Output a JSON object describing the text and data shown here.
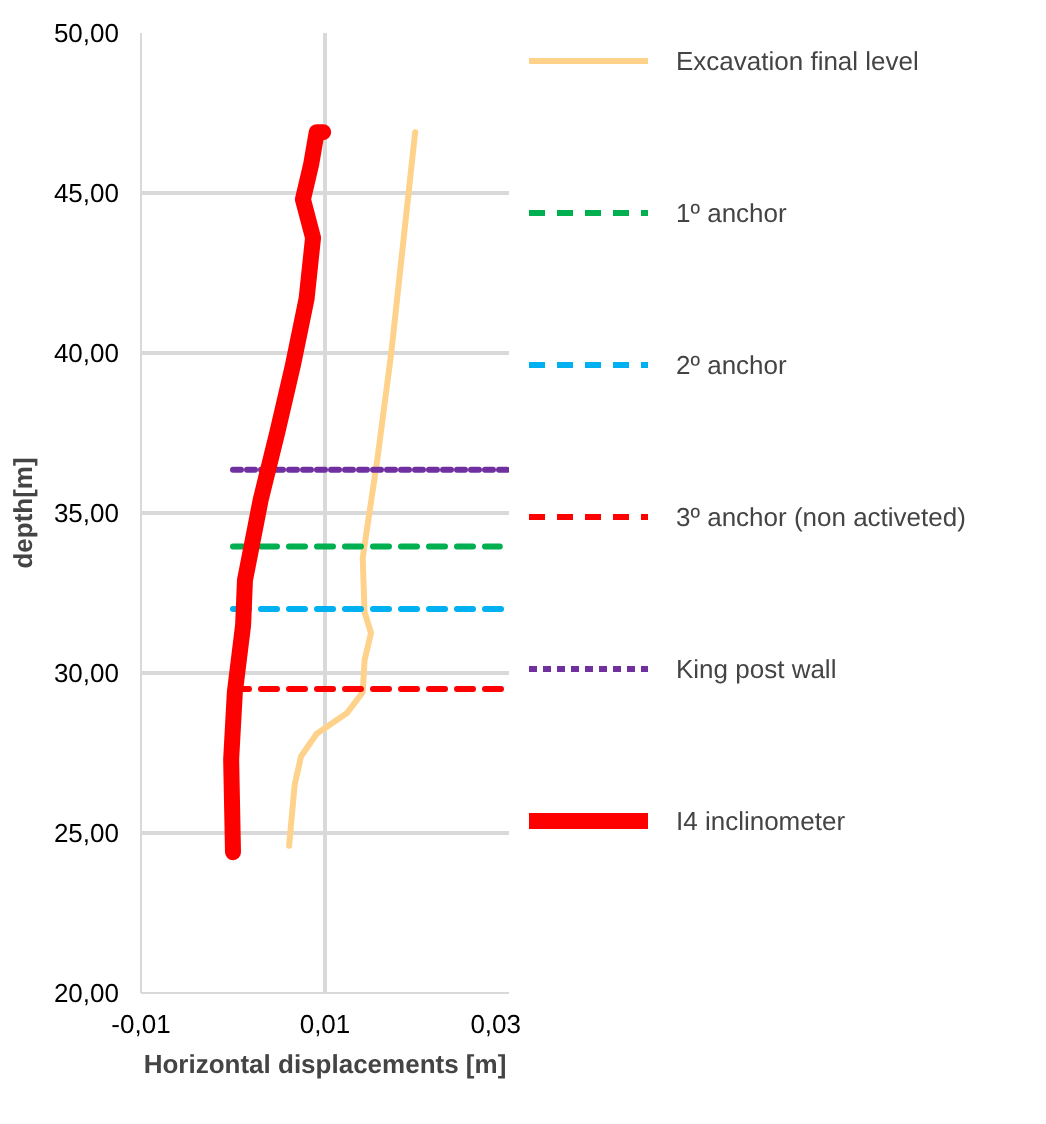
{
  "chart_data": {
    "type": "line",
    "xlabel": "Horizontal displacements [m]",
    "ylabel": "depth[m]",
    "xlim": [
      -0.01,
      0.03
    ],
    "ylim": [
      20,
      50
    ],
    "xticks": [
      {
        "value": -0.01,
        "label": "-0,01"
      },
      {
        "value": 0.01,
        "label": "0,01"
      },
      {
        "value": 0.03,
        "label": "0,03"
      }
    ],
    "yticks": [
      {
        "value": 20,
        "label": "20,00"
      },
      {
        "value": 25,
        "label": "25,00"
      },
      {
        "value": 30,
        "label": "30,00"
      },
      {
        "value": 35,
        "label": "35,00"
      },
      {
        "value": 40,
        "label": "40,00"
      },
      {
        "value": 45,
        "label": "45,00"
      },
      {
        "value": 50,
        "label": "50,00"
      }
    ],
    "grid": true,
    "legend": "right",
    "marker": "none",
    "series": [
      {
        "name": "Excavation final level",
        "color": "#ffd28c",
        "line_style": "solid",
        "x": [
          0.0198,
          0.0172,
          0.0157,
          0.0141,
          0.0143,
          0.015,
          0.0143,
          0.0141,
          0.0124,
          0.0091,
          0.0074,
          0.0067,
          0.0061
        ],
        "values": [
          46.9,
          40.0,
          36.7,
          33.6,
          31.9,
          31.25,
          30.4,
          29.4,
          28.75,
          28.1,
          27.4,
          26.5,
          24.6
        ]
      },
      {
        "name": "1º anchor",
        "color": "#00b050",
        "line_style": "dashed",
        "x": [
          0,
          0.029
        ],
        "values": [
          33.95,
          33.95
        ]
      },
      {
        "name": "2º anchor",
        "color": "#00b0f0",
        "line_style": "dashed",
        "x": [
          0,
          0.03
        ],
        "values": [
          32.0,
          32.0
        ]
      },
      {
        "name": "3º anchor (non activeted)",
        "color": "#ff0000",
        "line_style": "dashed",
        "x": [
          0,
          0.03
        ],
        "values": [
          29.5,
          29.5
        ]
      },
      {
        "name": "King post wall",
        "color": "#7030a0",
        "line_style": "dotted",
        "x": [
          0,
          0.03
        ],
        "values": [
          36.35,
          36.35
        ]
      },
      {
        "name": "I4 inclinometer",
        "color": "#ff0000",
        "line_style": "solid",
        "x": [
          0.0098,
          0.0091,
          0.0085,
          0.0076,
          0.0087,
          0.008,
          0.0065,
          0.0048,
          0.003,
          0.0013,
          0.0011,
          0.0002,
          -0.0002,
          0.0
        ],
        "values": [
          46.9,
          46.9,
          45.9,
          44.8,
          43.6,
          41.7,
          39.6,
          37.5,
          35.4,
          32.9,
          31.5,
          29.4,
          27.3,
          24.4
        ]
      }
    ]
  }
}
